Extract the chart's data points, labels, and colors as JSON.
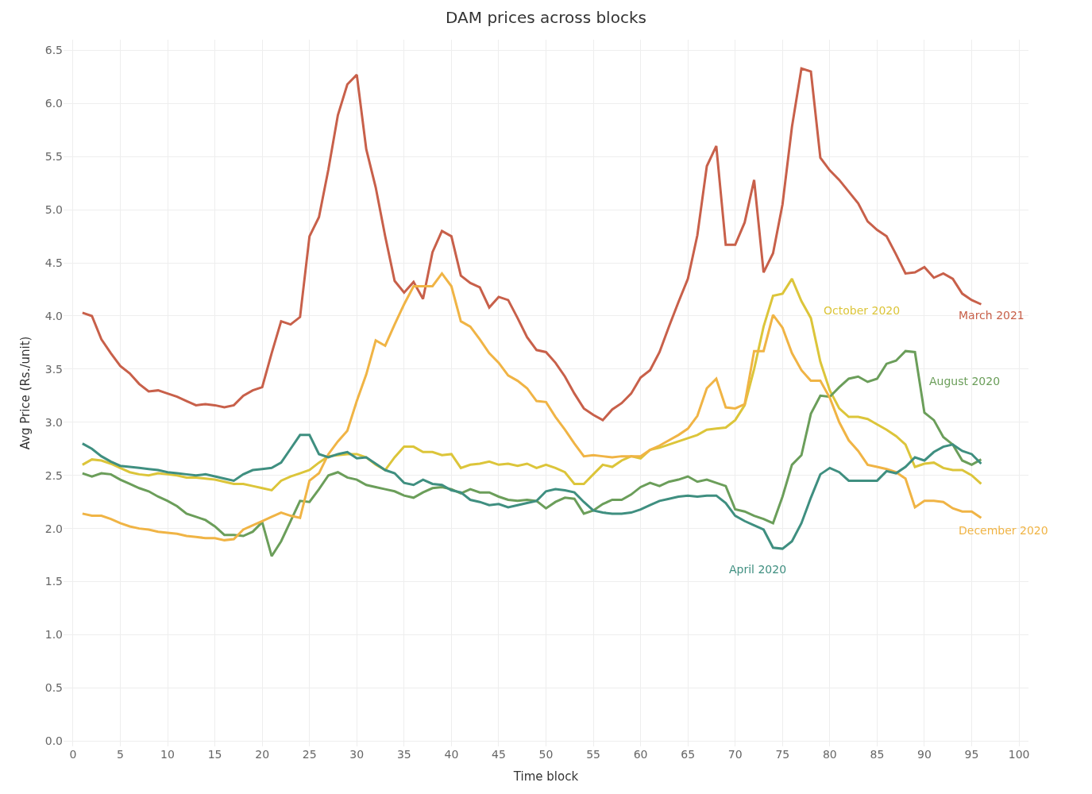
{
  "chart_data": {
    "type": "line",
    "title": "DAM prices across blocks",
    "xlabel": "Time block",
    "ylabel": "Avg Price (Rs./unit)",
    "x": [
      1,
      2,
      3,
      4,
      5,
      6,
      7,
      8,
      9,
      10,
      11,
      12,
      13,
      14,
      15,
      16,
      17,
      18,
      19,
      20,
      21,
      22,
      23,
      24,
      25,
      26,
      27,
      28,
      29,
      30,
      31,
      32,
      33,
      34,
      35,
      36,
      37,
      38,
      39,
      40,
      41,
      42,
      43,
      44,
      45,
      46,
      47,
      48,
      49,
      50,
      51,
      52,
      53,
      54,
      55,
      56,
      57,
      58,
      59,
      60,
      61,
      62,
      63,
      64,
      65,
      66,
      67,
      68,
      69,
      70,
      71,
      72,
      73,
      74,
      75,
      76,
      77,
      78,
      79,
      80,
      81,
      82,
      83,
      84,
      85,
      86,
      87,
      88,
      89,
      90,
      91,
      92,
      93,
      94,
      95,
      96
    ],
    "series": [
      {
        "name": "March 2021",
        "color": "#c8604a",
        "values": [
          4.03,
          4.0,
          3.78,
          3.65,
          3.53,
          3.46,
          3.36,
          3.29,
          3.3,
          3.27,
          3.24,
          3.2,
          3.16,
          3.17,
          3.16,
          3.14,
          3.16,
          3.25,
          3.3,
          3.33,
          3.65,
          3.95,
          3.92,
          3.99,
          4.75,
          4.93,
          5.38,
          5.89,
          6.18,
          6.27,
          5.57,
          5.21,
          4.75,
          4.33,
          4.22,
          4.32,
          4.16,
          4.6,
          4.8,
          4.75,
          4.38,
          4.31,
          4.27,
          4.08,
          4.18,
          4.15,
          3.98,
          3.8,
          3.68,
          3.66,
          3.56,
          3.43,
          3.27,
          3.13,
          3.07,
          3.02,
          3.12,
          3.18,
          3.27,
          3.42,
          3.49,
          3.66,
          3.9,
          4.13,
          4.35,
          4.76,
          5.41,
          5.6,
          4.67,
          4.67,
          4.88,
          5.28,
          4.41,
          4.59,
          5.05,
          5.78,
          6.33,
          6.3,
          5.49,
          5.37,
          5.28,
          5.17,
          5.06,
          4.89,
          4.81,
          4.75,
          4.58,
          4.4,
          4.41,
          4.46,
          4.36,
          4.4,
          4.35,
          4.21,
          4.15,
          4.11
        ]
      },
      {
        "name": "October 2020",
        "color": "#dcc53a",
        "values": [
          2.6,
          2.65,
          2.64,
          2.61,
          2.57,
          2.53,
          2.51,
          2.5,
          2.52,
          2.51,
          2.5,
          2.48,
          2.48,
          2.47,
          2.46,
          2.44,
          2.42,
          2.42,
          2.4,
          2.38,
          2.36,
          2.45,
          2.49,
          2.52,
          2.55,
          2.62,
          2.68,
          2.69,
          2.7,
          2.7,
          2.67,
          2.6,
          2.55,
          2.67,
          2.77,
          2.77,
          2.72,
          2.72,
          2.69,
          2.7,
          2.57,
          2.6,
          2.61,
          2.63,
          2.6,
          2.61,
          2.59,
          2.61,
          2.57,
          2.6,
          2.57,
          2.53,
          2.42,
          2.42,
          2.51,
          2.6,
          2.58,
          2.64,
          2.68,
          2.66,
          2.74,
          2.76,
          2.79,
          2.82,
          2.85,
          2.88,
          2.93,
          2.94,
          2.95,
          3.02,
          3.16,
          3.5,
          3.9,
          4.19,
          4.21,
          4.35,
          4.14,
          3.98,
          3.57,
          3.3,
          3.13,
          3.05,
          3.05,
          3.03,
          2.98,
          2.93,
          2.87,
          2.79,
          2.58,
          2.61,
          2.62,
          2.57,
          2.55,
          2.55,
          2.5,
          2.42
        ]
      },
      {
        "name": "August 2020",
        "color": "#6b9e5a",
        "values": [
          2.52,
          2.49,
          2.52,
          2.51,
          2.46,
          2.42,
          2.38,
          2.35,
          2.3,
          2.26,
          2.21,
          2.14,
          2.11,
          2.08,
          2.02,
          1.94,
          1.94,
          1.93,
          1.97,
          2.06,
          1.74,
          1.88,
          2.07,
          2.26,
          2.25,
          2.37,
          2.5,
          2.53,
          2.48,
          2.46,
          2.41,
          2.39,
          2.37,
          2.35,
          2.31,
          2.29,
          2.34,
          2.38,
          2.39,
          2.37,
          2.33,
          2.37,
          2.34,
          2.34,
          2.3,
          2.27,
          2.26,
          2.27,
          2.26,
          2.19,
          2.25,
          2.29,
          2.28,
          2.14,
          2.17,
          2.23,
          2.27,
          2.27,
          2.32,
          2.39,
          2.43,
          2.4,
          2.44,
          2.46,
          2.49,
          2.44,
          2.46,
          2.43,
          2.4,
          2.18,
          2.16,
          2.12,
          2.09,
          2.05,
          2.3,
          2.6,
          2.69,
          3.08,
          3.25,
          3.24,
          3.33,
          3.41,
          3.43,
          3.38,
          3.41,
          3.55,
          3.58,
          3.67,
          3.66,
          3.09,
          3.02,
          2.86,
          2.79,
          2.64,
          2.6,
          2.65
        ]
      },
      {
        "name": "December 2020",
        "color": "#f0b445",
        "values": [
          2.14,
          2.12,
          2.12,
          2.09,
          2.05,
          2.02,
          2.0,
          1.99,
          1.97,
          1.96,
          1.95,
          1.93,
          1.92,
          1.91,
          1.91,
          1.89,
          1.9,
          1.99,
          2.03,
          2.07,
          2.11,
          2.15,
          2.12,
          2.1,
          2.45,
          2.52,
          2.7,
          2.82,
          2.92,
          3.2,
          3.45,
          3.77,
          3.72,
          3.92,
          4.11,
          4.28,
          4.28,
          4.28,
          4.4,
          4.28,
          3.95,
          3.9,
          3.78,
          3.65,
          3.56,
          3.44,
          3.39,
          3.32,
          3.2,
          3.19,
          3.05,
          2.93,
          2.8,
          2.68,
          2.69,
          2.68,
          2.67,
          2.68,
          2.68,
          2.68,
          2.74,
          2.78,
          2.83,
          2.88,
          2.94,
          3.06,
          3.32,
          3.41,
          3.14,
          3.13,
          3.17,
          3.67,
          3.67,
          4.01,
          3.89,
          3.65,
          3.49,
          3.39,
          3.39,
          3.23,
          3.0,
          2.83,
          2.73,
          2.6,
          2.58,
          2.56,
          2.53,
          2.47,
          2.2,
          2.26,
          2.26,
          2.25,
          2.19,
          2.16,
          2.16,
          2.1
        ]
      },
      {
        "name": "April 2020",
        "color": "#3f8f80",
        "values": [
          2.8,
          2.75,
          2.68,
          2.63,
          2.59,
          2.58,
          2.57,
          2.56,
          2.55,
          2.53,
          2.52,
          2.51,
          2.5,
          2.51,
          2.49,
          2.47,
          2.45,
          2.51,
          2.55,
          2.56,
          2.57,
          2.62,
          2.75,
          2.88,
          2.88,
          2.7,
          2.67,
          2.7,
          2.72,
          2.66,
          2.67,
          2.61,
          2.55,
          2.52,
          2.43,
          2.41,
          2.46,
          2.42,
          2.41,
          2.36,
          2.34,
          2.27,
          2.25,
          2.22,
          2.23,
          2.2,
          2.22,
          2.24,
          2.26,
          2.35,
          2.37,
          2.36,
          2.34,
          2.25,
          2.17,
          2.15,
          2.14,
          2.14,
          2.15,
          2.18,
          2.22,
          2.26,
          2.28,
          2.3,
          2.31,
          2.3,
          2.31,
          2.31,
          2.24,
          2.12,
          2.07,
          2.03,
          1.99,
          1.82,
          1.81,
          1.88,
          2.05,
          2.29,
          2.51,
          2.57,
          2.53,
          2.45,
          2.45,
          2.45,
          2.45,
          2.54,
          2.52,
          2.58,
          2.67,
          2.64,
          2.72,
          2.77,
          2.79,
          2.73,
          2.7,
          2.61
        ]
      }
    ],
    "xlim": [
      -1,
      101
    ],
    "xticks": [
      0,
      5,
      10,
      15,
      20,
      25,
      30,
      35,
      40,
      45,
      50,
      55,
      60,
      65,
      70,
      75,
      80,
      85,
      90,
      95,
      100
    ],
    "ylim": [
      -0.05,
      6.6
    ],
    "yticks": [
      {
        "value": 0,
        "label": "0.0"
      },
      0.5,
      {
        "value": 1,
        "label": "1.0"
      },
      1.5,
      {
        "value": 2,
        "label": "2.0"
      },
      2.5,
      {
        "value": 3,
        "label": "3.0"
      },
      3.5,
      {
        "value": 4,
        "label": "4.0"
      },
      4.5,
      {
        "value": 5,
        "label": "5.0"
      },
      5.5,
      {
        "value": 6,
        "label": "6.0"
      },
      6.5
    ],
    "grid": true,
    "legend": false,
    "marker": "none",
    "line_style": "solid"
  }
}
